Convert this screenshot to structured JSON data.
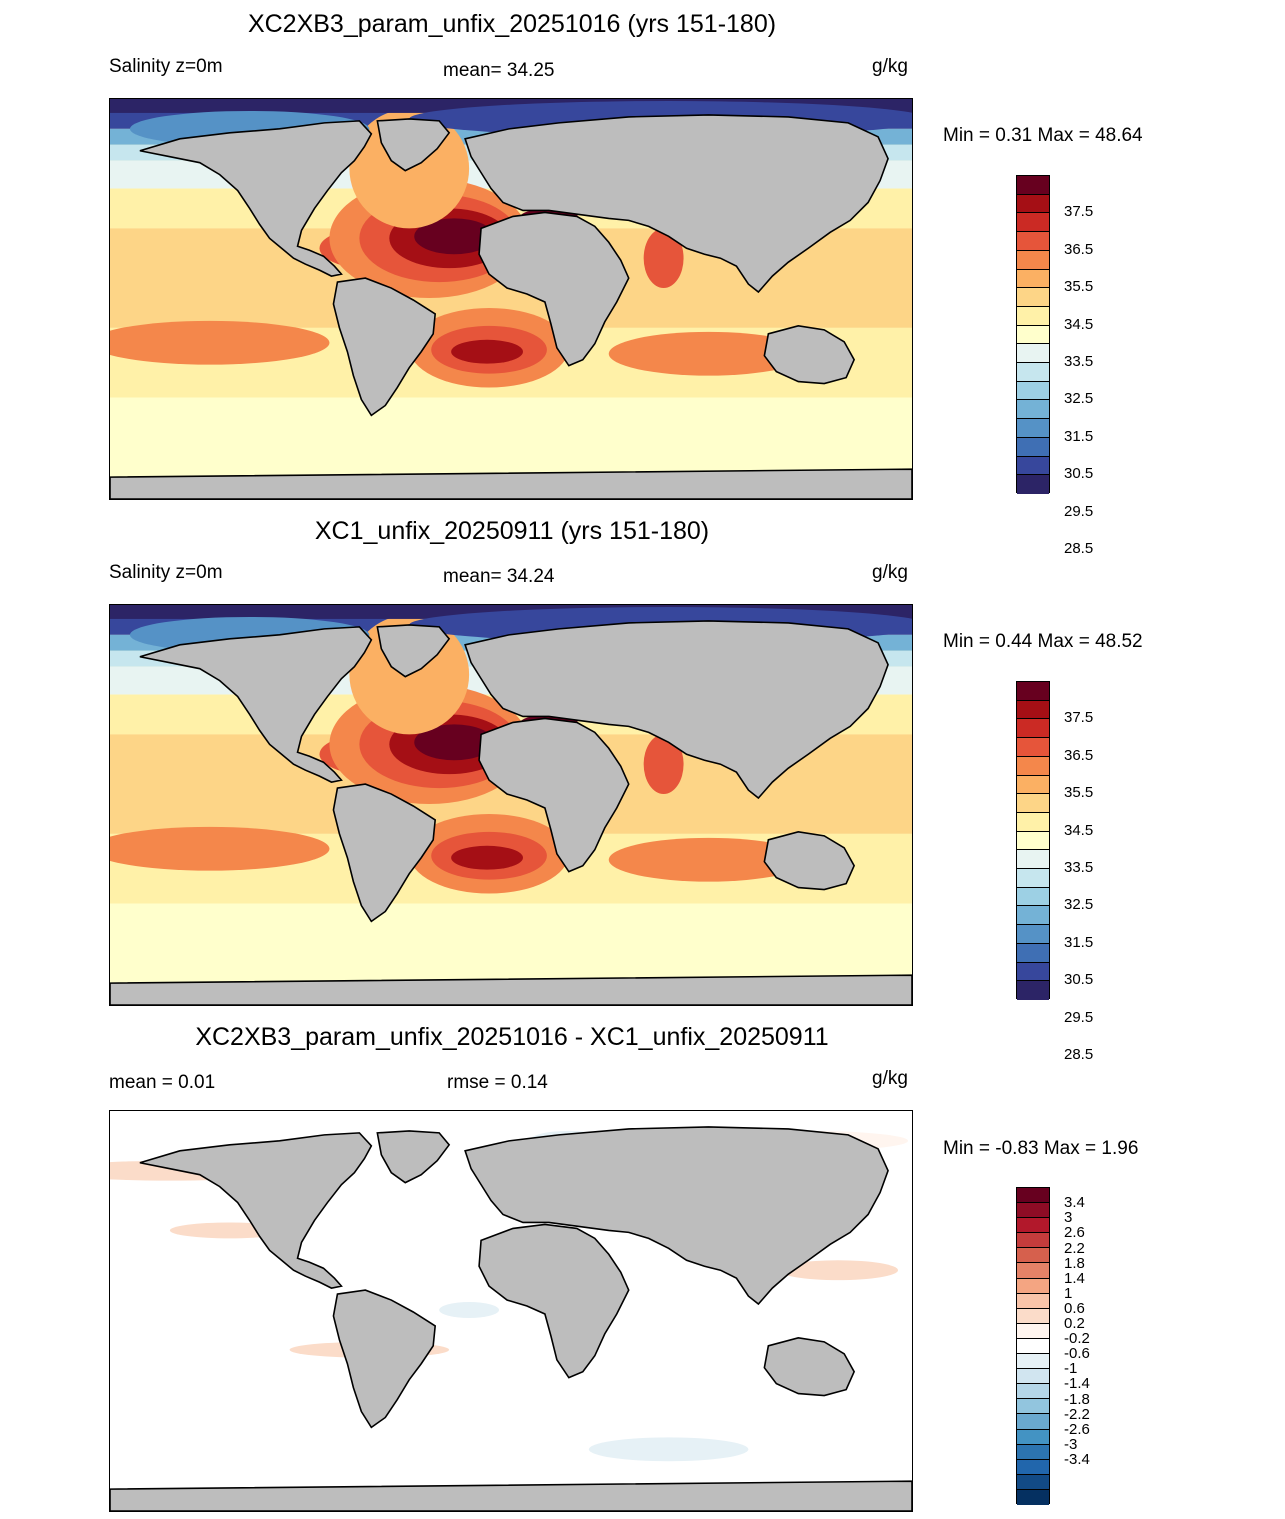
{
  "panels": [
    {
      "title": "XC2XB3_param_unfix_20251016 (yrs 151-180)",
      "left_label": "Salinity z=0m",
      "center_label": "mean=  34.25",
      "units": "g/kg",
      "minmax": "Min =   0.31 Max =  48.64",
      "colorbar_labels": [
        "37.5",
        "36.5",
        "35.5",
        "34.5",
        "33.5",
        "32.5",
        "31.5",
        "30.5",
        "29.5",
        "28.5"
      ],
      "colorbar_colors": [
        "#67001f",
        "#a50f15",
        "#cb2a24",
        "#e6553a",
        "#f4874b",
        "#fbb063",
        "#fdd587",
        "#fff1a8",
        "#ffffcc",
        "#e8f4f2",
        "#c6e6ee",
        "#9dd0e4",
        "#74b2d6",
        "#5592c6",
        "#3f6fb4",
        "#37479c",
        "#2c2466"
      ],
      "field_type": "salinity"
    },
    {
      "title": "XC1_unfix_20250911 (yrs 151-180)",
      "left_label": "Salinity z=0m",
      "center_label": "mean=  34.24",
      "units": "g/kg",
      "minmax": "Min =   0.44 Max =  48.52",
      "colorbar_labels": [
        "37.5",
        "36.5",
        "35.5",
        "34.5",
        "33.5",
        "32.5",
        "31.5",
        "30.5",
        "29.5",
        "28.5"
      ],
      "colorbar_colors": [
        "#67001f",
        "#a50f15",
        "#cb2a24",
        "#e6553a",
        "#f4874b",
        "#fbb063",
        "#fdd587",
        "#fff1a8",
        "#ffffcc",
        "#e8f4f2",
        "#c6e6ee",
        "#9dd0e4",
        "#74b2d6",
        "#5592c6",
        "#3f6fb4",
        "#37479c",
        "#2c2466"
      ],
      "field_type": "salinity"
    },
    {
      "title": "XC2XB3_param_unfix_20251016 - XC1_unfix_20250911",
      "left_label": "mean =   0.01",
      "center_label": "rmse =   0.14",
      "units": "g/kg",
      "minmax": "Min =  -0.83 Max =   1.96",
      "colorbar_labels": [
        "3.4",
        "3",
        "2.6",
        "2.2",
        "1.8",
        "1.4",
        "1",
        "0.6",
        "0.2",
        "-0.2",
        "-0.6",
        "-1",
        "-1.4",
        "-1.8",
        "-2.2",
        "-2.6",
        "-3",
        "-3.4"
      ],
      "colorbar_colors": [
        "#67001f",
        "#8e0c25",
        "#b2182b",
        "#c43c3c",
        "#d6604d",
        "#e58267",
        "#f4a582",
        "#f9c4a9",
        "#fbdcc9",
        "#fff5ef",
        "#ffffff",
        "#e6f1f6",
        "#d1e5f0",
        "#b4d6e8",
        "#92c5de",
        "#6aa9cf",
        "#4393c3",
        "#2c74b0",
        "#2166ac",
        "#124a85",
        "#053061"
      ],
      "field_type": "difference"
    }
  ],
  "colors": {
    "land": "#bdbdbd",
    "coast": "#000000"
  }
}
